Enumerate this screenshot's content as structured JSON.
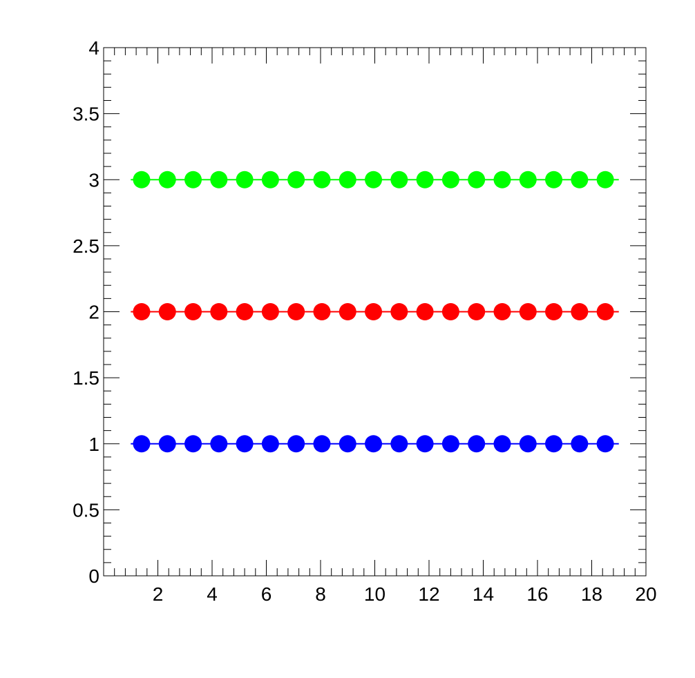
{
  "chart_data": {
    "type": "line",
    "title": "",
    "xlabel": "",
    "ylabel": "",
    "xlim": [
      0,
      20
    ],
    "ylim": [
      0,
      4
    ],
    "grid": false,
    "legend": "none",
    "x_ticks": [
      "2",
      "4",
      "6",
      "8",
      "10",
      "12",
      "14",
      "16",
      "18",
      "20"
    ],
    "y_ticks": [
      "0",
      "0.5",
      "1",
      "1.5",
      "2",
      "2.5",
      "3",
      "3.5",
      "4"
    ],
    "x_tick_values": [
      2,
      4,
      6,
      8,
      10,
      12,
      14,
      16,
      18,
      20
    ],
    "y_tick_values": [
      0,
      0.5,
      1,
      1.5,
      2,
      2.5,
      3,
      3.5,
      4
    ],
    "x": [
      1.4,
      2.35,
      3.3,
      4.25,
      5.2,
      6.15,
      7.1,
      8.05,
      9.0,
      9.95,
      10.9,
      11.85,
      12.8,
      13.75,
      14.7,
      15.65,
      16.6,
      17.55,
      18.5
    ],
    "line_x_range": [
      1,
      19
    ],
    "series": [
      {
        "values": [
          3,
          3,
          3,
          3,
          3,
          3,
          3,
          3,
          3,
          3,
          3,
          3,
          3,
          3,
          3,
          3,
          3,
          3,
          3
        ],
        "color": "#00ff00"
      },
      {
        "values": [
          2,
          2,
          2,
          2,
          2,
          2,
          2,
          2,
          2,
          2,
          2,
          2,
          2,
          2,
          2,
          2,
          2,
          2,
          2
        ],
        "color": "#ff0000"
      },
      {
        "values": [
          1,
          1,
          1,
          1,
          1,
          1,
          1,
          1,
          1,
          1,
          1,
          1,
          1,
          1,
          1,
          1,
          1,
          1,
          1
        ],
        "color": "#0000ff"
      }
    ]
  }
}
